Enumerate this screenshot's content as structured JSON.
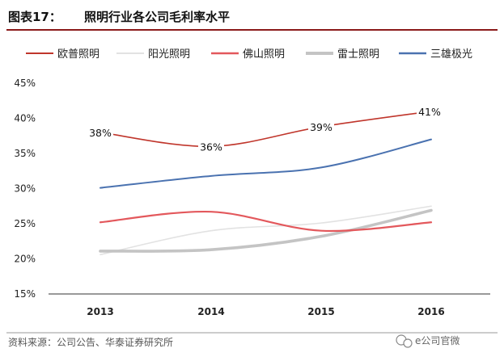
{
  "header": {
    "label": "图表17：",
    "title": "照明行业各公司毛利率水平"
  },
  "colors": {
    "title_rule": "#8b1a1a",
    "axis": "#333333",
    "footer_rule": "#999999"
  },
  "chart_data": {
    "type": "line",
    "title": "照明行业各公司毛利率水平",
    "xlabel": "",
    "ylabel": "",
    "categories": [
      "2013",
      "2014",
      "2015",
      "2016"
    ],
    "ylim": [
      0.15,
      0.45
    ],
    "y_ticks": [
      "15%",
      "20%",
      "25%",
      "30%",
      "35%",
      "40%",
      "45%"
    ],
    "grid": false,
    "legend_position": "top",
    "series": [
      {
        "name": "欧普照明",
        "values": [
          0.38,
          0.36,
          0.388,
          0.41
        ],
        "color": "#c0362c",
        "width": 1.6,
        "labels": [
          "38%",
          "36%",
          "39%",
          "41%"
        ]
      },
      {
        "name": "阳光照明",
        "values": [
          0.206,
          0.24,
          0.251,
          0.275
        ],
        "color": "#e2e2e2",
        "width": 1.6
      },
      {
        "name": "佛山照明",
        "values": [
          0.252,
          0.267,
          0.24,
          0.252
        ],
        "color": "#e3585c",
        "width": 2.2
      },
      {
        "name": "雷士照明",
        "values": [
          0.211,
          0.213,
          0.232,
          0.269
        ],
        "color": "#c4c4c4",
        "width": 3.6
      },
      {
        "name": "三雄极光",
        "values": [
          0.301,
          0.318,
          0.33,
          0.37
        ],
        "color": "#4a72b0",
        "width": 2.0
      }
    ]
  },
  "footer": {
    "source": "资料来源：公司公告、华泰证券研究所",
    "watermark": "e公司官微",
    "watermark_icon": "wechat-icon"
  }
}
